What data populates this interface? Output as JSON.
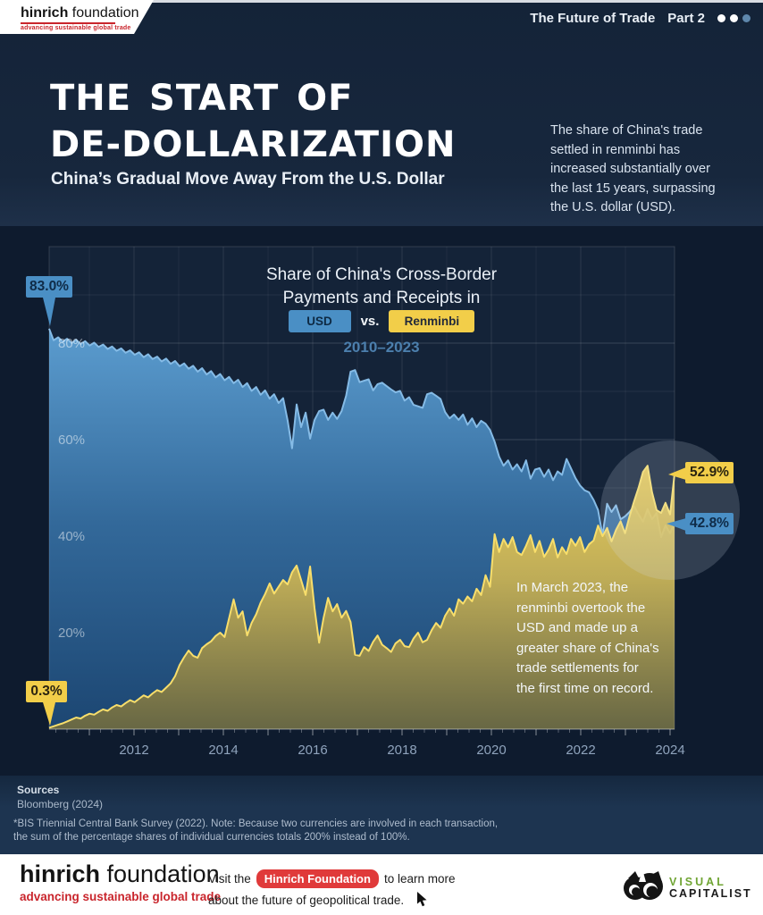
{
  "header": {
    "brand_bold": "hinrich",
    "brand_light": " foundation",
    "brand_tagline": "advancing sustainable global trade",
    "series_title": "The Future of Trade",
    "part": "Part 2"
  },
  "hero": {
    "title": "THE START OF\nDE-DOLLARIZATION",
    "subtitle": "China’s Gradual Move Away From the U.S. Dollar",
    "intro": "The share of China's trade\nsettled in renminbi has\nincreased substantially over\nthe last 15 years, surpassing\nthe U.S. dollar (USD)."
  },
  "chart_data": {
    "type": "area",
    "title": "Share of China's Cross-Border\nPayments and Receipts in",
    "legend": {
      "usd_label": "USD",
      "vs_label": "vs.",
      "rmb_label": "Renminbi",
      "date_range": "2010–2023",
      "position": "top-center"
    },
    "xlabel": "",
    "ylabel": "",
    "x_start": 2010.1,
    "x_end": 2024.0,
    "x_step_years": 0.1,
    "x_tick_labels": [
      "2012",
      "2014",
      "2016",
      "2018",
      "2020",
      "2022",
      "2024"
    ],
    "y_ticks": [
      20,
      40,
      60,
      80
    ],
    "y_tick_labels": [
      "20%",
      "40%",
      "60%",
      "80%"
    ],
    "ylim": [
      0,
      100
    ],
    "grid": "10pct-horizontal, yearly-vertical",
    "series": [
      {
        "name": "USD",
        "color": "#4A8FC5",
        "line_color": "#85BBE6",
        "values": [
          83.0,
          80.6,
          81.2,
          80.3,
          80.9,
          80.0,
          80.7,
          79.8,
          80.4,
          79.5,
          80.1,
          79.2,
          79.7,
          78.8,
          79.3,
          78.4,
          78.9,
          78.0,
          78.5,
          77.6,
          78.1,
          77.1,
          77.7,
          76.7,
          77.2,
          76.2,
          76.8,
          75.7,
          76.3,
          75.2,
          75.8,
          74.7,
          75.3,
          74.1,
          74.8,
          73.5,
          74.2,
          72.9,
          73.6,
          72.3,
          73.0,
          71.7,
          72.4,
          70.9,
          71.7,
          70.1,
          70.9,
          69.3,
          70.2,
          68.5,
          69.4,
          67.6,
          68.6,
          64.0,
          58.2,
          67.3,
          62.6,
          65.6,
          60.2,
          64.1,
          65.9,
          66.2,
          64.1,
          65.6,
          64.3,
          65.9,
          69.1,
          74.1,
          74.4,
          71.9,
          72.2,
          72.5,
          70.2,
          71.5,
          71.8,
          71.1,
          70.4,
          69.8,
          70.1,
          68.1,
          68.8,
          67.2,
          66.9,
          66.6,
          69.4,
          69.7,
          69.1,
          68.4,
          65.7,
          64.4,
          65.2,
          64.1,
          65.2,
          63.1,
          64.4,
          62.6,
          63.9,
          63.3,
          62.0,
          59.6,
          56.5,
          54.6,
          55.7,
          53.8,
          54.9,
          53.4,
          55.7,
          51.9,
          53.8,
          54.1,
          52.3,
          53.8,
          51.6,
          53.4,
          52.7,
          56.0,
          54.0,
          52.0,
          50.5,
          49.5,
          49.1,
          47.5,
          45.4,
          40.2,
          46.7,
          45.0,
          46.4,
          43.5,
          44.1,
          45.0,
          46.2,
          44.5,
          43.0,
          45.6,
          43.5,
          44.8,
          39.8,
          42.2,
          40.6,
          42.8
        ]
      },
      {
        "name": "Renminbi",
        "color": "#F2CE49",
        "line_color": "#F8DE6B",
        "values": [
          0.3,
          0.6,
          0.9,
          1.2,
          1.6,
          2.0,
          2.4,
          2.2,
          2.8,
          3.2,
          3.0,
          3.6,
          4.1,
          3.8,
          4.5,
          5.0,
          4.7,
          5.4,
          6.0,
          5.6,
          6.3,
          7.0,
          6.6,
          7.4,
          8.1,
          7.7,
          8.6,
          9.5,
          11.0,
          13.3,
          14.9,
          16.3,
          15.2,
          14.8,
          16.8,
          17.6,
          18.2,
          19.3,
          20.0,
          19.1,
          23.0,
          26.9,
          23.1,
          24.4,
          19.4,
          22.0,
          23.8,
          26.2,
          28.0,
          30.2,
          28.1,
          29.5,
          30.9,
          30.0,
          32.5,
          33.9,
          30.9,
          27.8,
          33.7,
          25.0,
          17.9,
          23.1,
          27.2,
          24.4,
          25.9,
          23.1,
          24.5,
          22.2,
          15.4,
          15.2,
          17.0,
          16.2,
          18.1,
          19.4,
          17.5,
          16.8,
          16.0,
          17.8,
          18.5,
          17.2,
          17.0,
          18.8,
          20.0,
          18.0,
          18.5,
          20.5,
          22.0,
          21.0,
          23.5,
          25.0,
          23.5,
          26.9,
          26.0,
          27.5,
          26.5,
          29.1,
          27.8,
          31.9,
          29.5,
          40.4,
          36.7,
          39.4,
          37.7,
          39.8,
          36.7,
          36.1,
          38.0,
          40.2,
          36.7,
          39.0,
          35.7,
          37.2,
          39.4,
          35.6,
          37.7,
          36.3,
          39.4,
          38.0,
          39.8,
          36.7,
          38.3,
          39.1,
          42.2,
          40.0,
          41.7,
          38.9,
          41.3,
          43.1,
          40.6,
          44.1,
          47.2,
          50.0,
          53.3,
          54.6,
          49.1,
          45.4,
          44.8,
          46.9,
          44.5,
          52.9
        ]
      }
    ],
    "callouts": {
      "usd_start": "83.0%",
      "rmb_start": "0.3%",
      "rmb_end": "52.9%",
      "usd_end": "42.8%"
    },
    "annotation": "In March 2023, the\nrenminbi overtook the\nUSD and made up a\ngreater share of China's\ntrade settlements for\nthe first time on record."
  },
  "sources": {
    "label": "Sources",
    "items": "Bloomberg (2024)",
    "footnote": "*BIS Triennial Central Bank Survey (2022). Note: Because two currencies are involved in each transaction,\nthe sum of the percentage shares of individual currencies totals 200% instead of 100%."
  },
  "footer": {
    "brand_bold": "hinrich",
    "brand_light": " foundation",
    "tagline": "advancing sustainable global trade",
    "visit_prefix": "Visit the",
    "visit_badge": "Hinrich Foundation",
    "visit_suffix": "to learn more",
    "visit_line2": "about the future of geopolitical trade.",
    "vc_line1": "VISUAL",
    "vc_line2": "CAPITALIST"
  },
  "colors": {
    "usd": "#4A8FC5",
    "renminbi": "#F2CE49",
    "page_bg": "#0E1B2E",
    "top_bg": "#17273D",
    "sources_bg": "#1D3450",
    "accent_red": "#C9252C"
  }
}
